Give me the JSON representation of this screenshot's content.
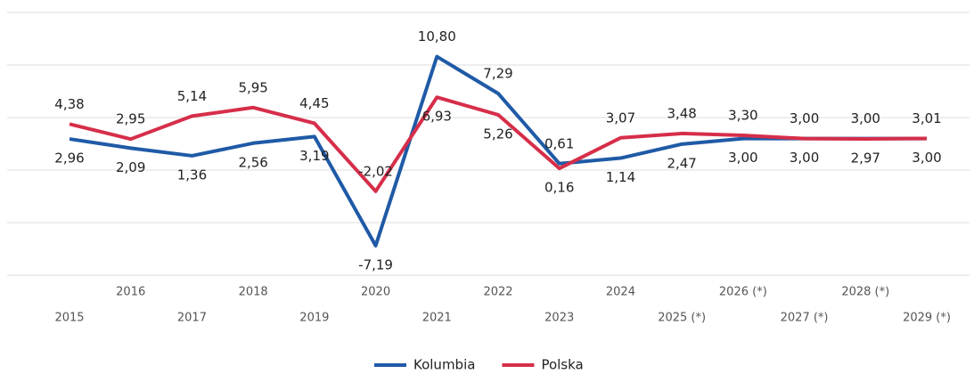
{
  "chart_data": {
    "type": "line",
    "categories": [
      "2015",
      "2016",
      "2017",
      "2018",
      "2019",
      "2020",
      "2021",
      "2022",
      "2023",
      "2024",
      "2025 (*)",
      "2026 (*)",
      "2027 (*)",
      "2028 (*)",
      "2029 (*)"
    ],
    "series": [
      {
        "name": "Kolumbia",
        "color": "#1f5aa6",
        "values": [
          2.96,
          2.09,
          1.36,
          2.56,
          3.19,
          -7.19,
          10.8,
          7.29,
          0.61,
          1.14,
          2.47,
          3.0,
          3.0,
          3.0,
          3.0
        ],
        "value_labels": [
          "2,96",
          "2,09",
          "1,36",
          "2,56",
          "3,19",
          "-7,19",
          "10,80",
          "7,29",
          "0,61",
          "1,14",
          "2,47",
          "3,00",
          "3,00",
          "3,00",
          "3,00"
        ]
      },
      {
        "name": "Polska",
        "color": "#d62e4a",
        "values": [
          4.38,
          2.95,
          5.14,
          5.95,
          4.45,
          -2.02,
          6.93,
          5.26,
          0.16,
          3.07,
          3.48,
          3.3,
          3.0,
          2.97,
          3.01
        ],
        "value_labels": [
          "4,38",
          "2,95",
          "5,14",
          "5,95",
          "4,45",
          "-2,02",
          "6,93",
          "5,26",
          "0,16",
          "3,07",
          "3,48",
          "3,30",
          "3,00",
          "2,97",
          "3,01"
        ]
      }
    ],
    "ylim": [
      -10,
      15
    ],
    "yticks": [
      -10,
      -5,
      0,
      5,
      10,
      15
    ],
    "grid": true,
    "legend": "bottom"
  }
}
